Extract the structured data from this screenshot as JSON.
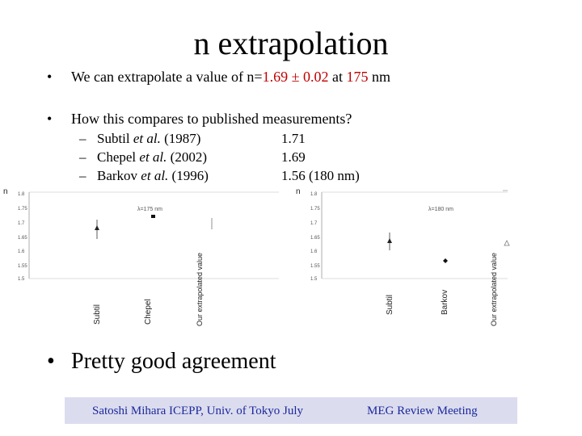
{
  "title": "n extrapolation",
  "bullets": [
    {
      "prefix": "We can extrapolate a value of n=",
      "value": "1.69 ± 0.02",
      "mid": " at ",
      "wavelength": "175",
      "suffix": " nm"
    },
    {
      "text": "How this compares to published measurements?"
    }
  ],
  "measurements": [
    {
      "author": "Subtil",
      "etal": "et al.",
      "year": "(1987)",
      "value": "1.71"
    },
    {
      "author": "Chepel",
      "etal": "et al.",
      "year": "(2002)",
      "value": "1.69"
    },
    {
      "author": "Barkov",
      "etal": "et al.",
      "year": "(1996)",
      "value": "1.56 (180 nm)"
    }
  ],
  "plots": [
    {
      "axis_label": "n",
      "lambda_label": "λ=175 nm",
      "yticks": [
        "1.8",
        "1.75",
        "1.7",
        "1.65",
        "1.6",
        "1.55",
        "1.5"
      ],
      "xlabels": [
        "Subtil",
        "Chepel",
        "Our extrapolated value"
      ]
    },
    {
      "axis_label": "n",
      "lambda_label": "λ=180 nm",
      "yticks": [
        "1.8",
        "1.75",
        "1.7",
        "1.65",
        "1.6",
        "1.55",
        "1.5"
      ],
      "xlabels": [
        "Subtil",
        "Barkov",
        "Our extrapolated value"
      ]
    }
  ],
  "conclusion": "Pretty good agreement",
  "footer": {
    "left": "Satoshi Mihara ICEPP, Univ. of Tokyo July",
    "right": "MEG Review Meeting"
  },
  "colors": {
    "highlight": "#c00000",
    "footer_bg": "#dcdcef",
    "footer_text": "#1a2a9a"
  }
}
